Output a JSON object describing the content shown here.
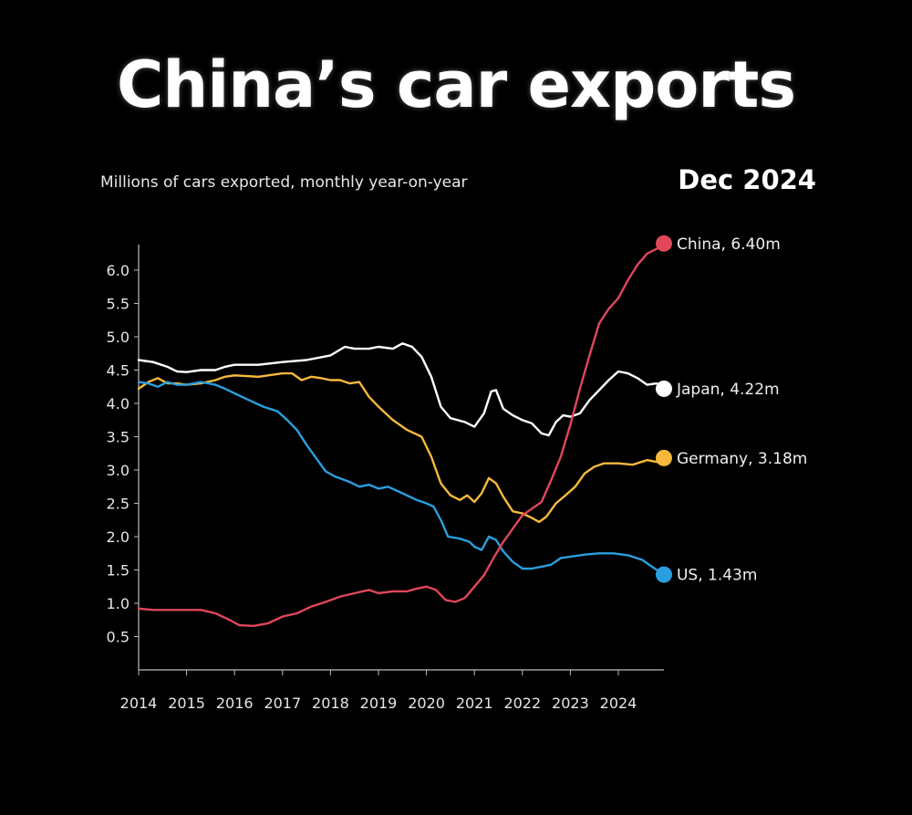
{
  "chart_data": {
    "type": "line",
    "title": "China’s car exports",
    "subtitle": "Millions of cars exported, monthly year-on-year",
    "date_label": "Dec 2024",
    "xlabel": "",
    "ylabel": "",
    "xlim": [
      2014,
      2025
    ],
    "ylim": [
      0,
      6.4
    ],
    "x_ticks": [
      "2014",
      "2015",
      "2016",
      "2017",
      "2018",
      "2019",
      "2020",
      "2021",
      "2022",
      "2023",
      "2024"
    ],
    "y_ticks": [
      "0.5",
      "1.0",
      "1.5",
      "2.0",
      "2.5",
      "3.0",
      "3.5",
      "4.0",
      "4.5",
      "5.0",
      "5.5",
      "6.0"
    ],
    "grid": false,
    "series": [
      {
        "name": "Japan",
        "label": "Japan, 4.22m",
        "color": "#ffffff",
        "end_value": 4.22,
        "points": [
          [
            2014.0,
            4.65
          ],
          [
            2014.3,
            4.62
          ],
          [
            2014.6,
            4.55
          ],
          [
            2014.8,
            4.48
          ],
          [
            2015.0,
            4.47
          ],
          [
            2015.3,
            4.5
          ],
          [
            2015.6,
            4.5
          ],
          [
            2015.8,
            4.55
          ],
          [
            2016.0,
            4.58
          ],
          [
            2016.5,
            4.58
          ],
          [
            2017.0,
            4.62
          ],
          [
            2017.5,
            4.65
          ],
          [
            2018.0,
            4.72
          ],
          [
            2018.3,
            4.85
          ],
          [
            2018.5,
            4.82
          ],
          [
            2018.8,
            4.82
          ],
          [
            2019.0,
            4.85
          ],
          [
            2019.3,
            4.82
          ],
          [
            2019.5,
            4.9
          ],
          [
            2019.7,
            4.85
          ],
          [
            2019.9,
            4.7
          ],
          [
            2020.1,
            4.4
          ],
          [
            2020.3,
            3.95
          ],
          [
            2020.5,
            3.78
          ],
          [
            2020.8,
            3.72
          ],
          [
            2021.0,
            3.65
          ],
          [
            2021.2,
            3.85
          ],
          [
            2021.35,
            4.18
          ],
          [
            2021.45,
            4.2
          ],
          [
            2021.6,
            3.92
          ],
          [
            2021.8,
            3.82
          ],
          [
            2022.0,
            3.75
          ],
          [
            2022.2,
            3.7
          ],
          [
            2022.4,
            3.55
          ],
          [
            2022.55,
            3.52
          ],
          [
            2022.7,
            3.72
          ],
          [
            2022.85,
            3.82
          ],
          [
            2023.0,
            3.8
          ],
          [
            2023.2,
            3.85
          ],
          [
            2023.4,
            4.05
          ],
          [
            2023.6,
            4.2
          ],
          [
            2023.8,
            4.35
          ],
          [
            2024.0,
            4.48
          ],
          [
            2024.2,
            4.45
          ],
          [
            2024.4,
            4.38
          ],
          [
            2024.6,
            4.28
          ],
          [
            2024.8,
            4.3
          ],
          [
            2024.95,
            4.22
          ]
        ]
      },
      {
        "name": "Germany",
        "label": "Germany, 3.18m",
        "color": "#f6b93b",
        "end_value": 3.18,
        "points": [
          [
            2014.0,
            4.22
          ],
          [
            2014.2,
            4.32
          ],
          [
            2014.4,
            4.38
          ],
          [
            2014.6,
            4.3
          ],
          [
            2014.8,
            4.3
          ],
          [
            2015.0,
            4.28
          ],
          [
            2015.3,
            4.3
          ],
          [
            2015.6,
            4.35
          ],
          [
            2015.8,
            4.4
          ],
          [
            2016.0,
            4.42
          ],
          [
            2016.5,
            4.4
          ],
          [
            2017.0,
            4.45
          ],
          [
            2017.2,
            4.45
          ],
          [
            2017.4,
            4.35
          ],
          [
            2017.6,
            4.4
          ],
          [
            2017.8,
            4.38
          ],
          [
            2018.0,
            4.35
          ],
          [
            2018.2,
            4.35
          ],
          [
            2018.4,
            4.3
          ],
          [
            2018.6,
            4.32
          ],
          [
            2018.8,
            4.1
          ],
          [
            2019.0,
            3.95
          ],
          [
            2019.3,
            3.75
          ],
          [
            2019.6,
            3.6
          ],
          [
            2019.9,
            3.5
          ],
          [
            2020.1,
            3.2
          ],
          [
            2020.3,
            2.8
          ],
          [
            2020.5,
            2.62
          ],
          [
            2020.7,
            2.55
          ],
          [
            2020.85,
            2.62
          ],
          [
            2021.0,
            2.52
          ],
          [
            2021.15,
            2.65
          ],
          [
            2021.3,
            2.88
          ],
          [
            2021.45,
            2.8
          ],
          [
            2021.6,
            2.6
          ],
          [
            2021.8,
            2.38
          ],
          [
            2022.0,
            2.35
          ],
          [
            2022.2,
            2.28
          ],
          [
            2022.35,
            2.22
          ],
          [
            2022.5,
            2.3
          ],
          [
            2022.7,
            2.5
          ],
          [
            2022.9,
            2.62
          ],
          [
            2023.1,
            2.75
          ],
          [
            2023.3,
            2.95
          ],
          [
            2023.5,
            3.05
          ],
          [
            2023.7,
            3.1
          ],
          [
            2024.0,
            3.1
          ],
          [
            2024.3,
            3.08
          ],
          [
            2024.6,
            3.15
          ],
          [
            2024.8,
            3.12
          ],
          [
            2024.95,
            3.18
          ]
        ]
      },
      {
        "name": "US",
        "label": "US, 1.43m",
        "color": "#2a9fdf",
        "end_value": 1.43,
        "points": [
          [
            2014.0,
            4.32
          ],
          [
            2014.2,
            4.3
          ],
          [
            2014.4,
            4.25
          ],
          [
            2014.6,
            4.32
          ],
          [
            2014.8,
            4.28
          ],
          [
            2015.0,
            4.28
          ],
          [
            2015.3,
            4.32
          ],
          [
            2015.6,
            4.28
          ],
          [
            2015.8,
            4.22
          ],
          [
            2016.0,
            4.15
          ],
          [
            2016.3,
            4.05
          ],
          [
            2016.6,
            3.95
          ],
          [
            2016.9,
            3.88
          ],
          [
            2017.1,
            3.75
          ],
          [
            2017.3,
            3.6
          ],
          [
            2017.5,
            3.38
          ],
          [
            2017.7,
            3.18
          ],
          [
            2017.9,
            2.98
          ],
          [
            2018.1,
            2.9
          ],
          [
            2018.4,
            2.82
          ],
          [
            2018.6,
            2.75
          ],
          [
            2018.8,
            2.78
          ],
          [
            2019.0,
            2.72
          ],
          [
            2019.2,
            2.75
          ],
          [
            2019.5,
            2.65
          ],
          [
            2019.8,
            2.55
          ],
          [
            2020.0,
            2.5
          ],
          [
            2020.15,
            2.45
          ],
          [
            2020.3,
            2.25
          ],
          [
            2020.45,
            2.0
          ],
          [
            2020.7,
            1.97
          ],
          [
            2020.9,
            1.92
          ],
          [
            2021.0,
            1.85
          ],
          [
            2021.15,
            1.8
          ],
          [
            2021.3,
            2.0
          ],
          [
            2021.45,
            1.95
          ],
          [
            2021.6,
            1.78
          ],
          [
            2021.8,
            1.62
          ],
          [
            2022.0,
            1.52
          ],
          [
            2022.2,
            1.52
          ],
          [
            2022.4,
            1.55
          ],
          [
            2022.6,
            1.58
          ],
          [
            2022.8,
            1.68
          ],
          [
            2023.0,
            1.7
          ],
          [
            2023.3,
            1.73
          ],
          [
            2023.6,
            1.75
          ],
          [
            2023.9,
            1.75
          ],
          [
            2024.2,
            1.72
          ],
          [
            2024.5,
            1.65
          ],
          [
            2024.7,
            1.55
          ],
          [
            2024.95,
            1.43
          ]
        ]
      },
      {
        "name": "China",
        "label": "China, 6.40m",
        "color": "#e0475a",
        "end_value": 6.4,
        "points": [
          [
            2014.0,
            0.92
          ],
          [
            2014.3,
            0.9
          ],
          [
            2014.6,
            0.9
          ],
          [
            2015.0,
            0.9
          ],
          [
            2015.3,
            0.9
          ],
          [
            2015.6,
            0.85
          ],
          [
            2015.9,
            0.75
          ],
          [
            2016.1,
            0.67
          ],
          [
            2016.4,
            0.66
          ],
          [
            2016.7,
            0.7
          ],
          [
            2017.0,
            0.8
          ],
          [
            2017.3,
            0.85
          ],
          [
            2017.6,
            0.95
          ],
          [
            2017.9,
            1.02
          ],
          [
            2018.2,
            1.1
          ],
          [
            2018.5,
            1.15
          ],
          [
            2018.8,
            1.2
          ],
          [
            2019.0,
            1.15
          ],
          [
            2019.3,
            1.18
          ],
          [
            2019.6,
            1.18
          ],
          [
            2019.8,
            1.22
          ],
          [
            2020.0,
            1.25
          ],
          [
            2020.2,
            1.2
          ],
          [
            2020.4,
            1.05
          ],
          [
            2020.6,
            1.02
          ],
          [
            2020.8,
            1.08
          ],
          [
            2021.0,
            1.25
          ],
          [
            2021.2,
            1.42
          ],
          [
            2021.4,
            1.68
          ],
          [
            2021.6,
            1.92
          ],
          [
            2021.8,
            2.12
          ],
          [
            2022.0,
            2.32
          ],
          [
            2022.2,
            2.42
          ],
          [
            2022.4,
            2.52
          ],
          [
            2022.6,
            2.85
          ],
          [
            2022.8,
            3.2
          ],
          [
            2023.0,
            3.68
          ],
          [
            2023.2,
            4.22
          ],
          [
            2023.4,
            4.72
          ],
          [
            2023.6,
            5.2
          ],
          [
            2023.8,
            5.42
          ],
          [
            2024.0,
            5.58
          ],
          [
            2024.2,
            5.85
          ],
          [
            2024.4,
            6.08
          ],
          [
            2024.6,
            6.25
          ],
          [
            2024.8,
            6.32
          ],
          [
            2024.95,
            6.4
          ]
        ]
      }
    ]
  }
}
